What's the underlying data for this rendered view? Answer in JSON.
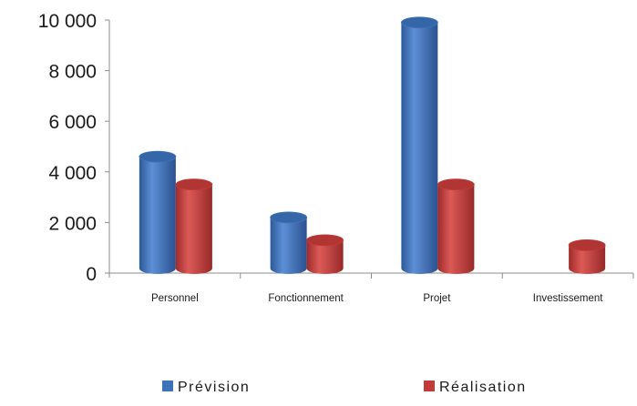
{
  "chart_data": {
    "type": "bar",
    "categories": [
      "Personnel",
      "Fonctionnement",
      "Projet",
      "Investissement"
    ],
    "series": [
      {
        "name": "Prévision",
        "values": [
          4600,
          2200,
          9900,
          null
        ],
        "color": "#3f72b8"
      },
      {
        "name": "Réalisation",
        "values": [
          3500,
          1300,
          3500,
          1100
        ],
        "color": "#c23b39"
      }
    ],
    "ylim": [
      0,
      10000
    ],
    "yticks": [
      0,
      2000,
      4000,
      6000,
      8000,
      10000
    ],
    "ytick_labels": [
      "0",
      "2 000",
      "4 000",
      "6 000",
      "8 000",
      "10 000"
    ],
    "title": "",
    "xlabel": "",
    "ylabel": "",
    "grid": false,
    "legend_position": "bottom",
    "style": "3d-cylinder"
  }
}
